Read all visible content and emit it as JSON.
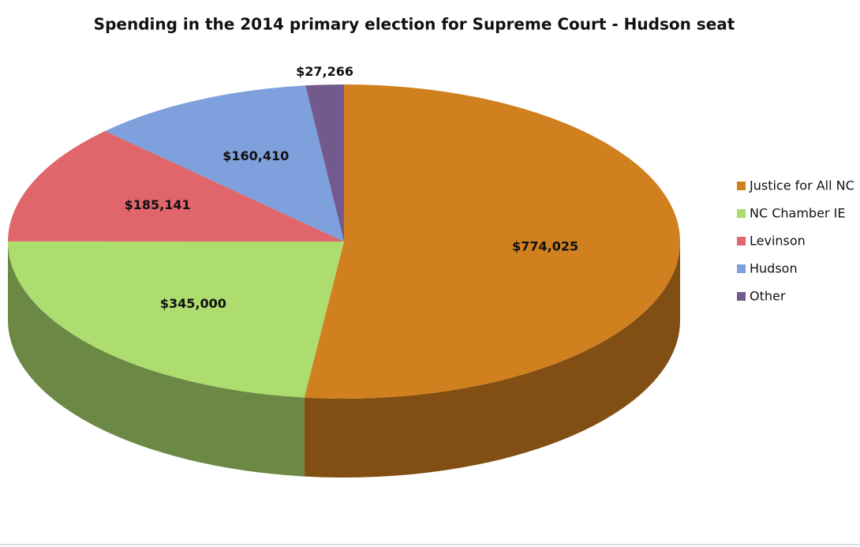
{
  "chart_data": {
    "type": "pie",
    "title": "Spending in the 2014 primary election for Supreme Court - Hudson seat",
    "categories": [
      "Justice for All NC",
      "NC Chamber IE",
      "Levinson",
      "Hudson",
      "Other"
    ],
    "values": [
      774025,
      345000,
      185141,
      160410,
      27266
    ],
    "value_labels": [
      "$774,025",
      "$345,000",
      "$185,141",
      "$160,410",
      "$27,266"
    ],
    "colors": [
      "#d0801f",
      "#acdd6e",
      "#e0666c",
      "#7ea0dc",
      "#735a8c"
    ],
    "legend": "right"
  }
}
